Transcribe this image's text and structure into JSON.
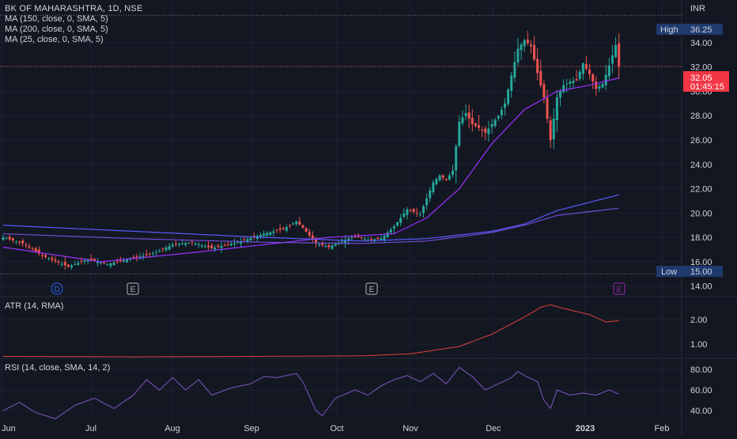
{
  "symbol_title": "BK OF MAHARASHTRA, 1D, NSE",
  "currency": "INR",
  "indicators": {
    "ma150": "MA (150, close, 0, SMA, 5)",
    "ma200": "MA (200, close, 0, SMA, 5)",
    "ma25": "MA (25, close, 0, SMA, 5)",
    "atr": "ATR (14, RMA)",
    "rsi": "RSI (14, close, SMA, 14, 2)"
  },
  "price_labels": {
    "high_label": "High",
    "high_value": "36.25",
    "low_label": "Low",
    "low_value": "15.00",
    "last_value": "32.05",
    "countdown": "01:45:15"
  },
  "event_markers": [
    "D",
    "E",
    "E",
    "E"
  ],
  "colors": {
    "background": "#131722",
    "up": "#26a69a",
    "down": "#ef5350",
    "ma25": "#9b30ff",
    "ma150": "#5b5bff",
    "ma200": "#6f4dd8",
    "atr": "#e0403c",
    "rsi": "#7e57c2",
    "grid": "#1e2230"
  },
  "chart_data": [
    {
      "type": "candlestick",
      "title": "BK OF MAHARASHTRA, 1D, NSE",
      "ylabel": "INR",
      "ylim": [
        13.2,
        37.5
      ],
      "y_ticks": [
        14,
        16,
        18,
        20,
        22,
        24,
        26,
        28,
        30,
        32,
        34
      ],
      "x_tick_labels": [
        "Jun",
        "Jul",
        "Aug",
        "Sep",
        "Oct",
        "Nov",
        "Dec",
        "2023",
        "Feb"
      ],
      "high": 36.25,
      "low": 15.0,
      "last": 32.05,
      "anchors": [
        [
          0,
          18.0
        ],
        [
          6,
          17.5
        ],
        [
          12,
          16.5
        ],
        [
          20,
          15.6
        ],
        [
          26,
          16.2
        ],
        [
          32,
          15.8
        ],
        [
          40,
          16.3
        ],
        [
          46,
          16.7
        ],
        [
          52,
          17.4
        ],
        [
          58,
          17.6
        ],
        [
          64,
          17.1
        ],
        [
          72,
          17.6
        ],
        [
          80,
          18.3
        ],
        [
          86,
          18.7
        ],
        [
          90,
          19.3
        ],
        [
          92,
          18.8
        ],
        [
          96,
          17.5
        ],
        [
          100,
          17.2
        ],
        [
          104,
          17.7
        ],
        [
          108,
          18.1
        ],
        [
          112,
          17.8
        ],
        [
          116,
          17.9
        ],
        [
          120,
          18.9
        ],
        [
          124,
          20.3
        ],
        [
          126,
          20.1
        ],
        [
          128,
          19.9
        ],
        [
          130,
          21.2
        ],
        [
          132,
          22.5
        ],
        [
          134,
          23.1
        ],
        [
          136,
          22.7
        ],
        [
          138,
          23.5
        ],
        [
          140,
          27.5
        ],
        [
          142,
          28.2
        ],
        [
          144,
          27.3
        ],
        [
          146,
          27.0
        ],
        [
          148,
          26.6
        ],
        [
          150,
          27.3
        ],
        [
          152,
          28.0
        ],
        [
          154,
          29.0
        ],
        [
          156,
          31.3
        ],
        [
          158,
          33.5
        ],
        [
          160,
          34.2
        ],
        [
          162,
          33.7
        ],
        [
          164,
          31.5
        ],
        [
          166,
          29.5
        ],
        [
          168,
          26.0
        ],
        [
          170,
          29.5
        ],
        [
          172,
          30.5
        ],
        [
          174,
          30.8
        ],
        [
          176,
          30.9
        ],
        [
          178,
          32.3
        ],
        [
          180,
          31.4
        ],
        [
          182,
          30.2
        ],
        [
          184,
          30.6
        ],
        [
          186,
          32.1
        ],
        [
          188,
          33.8
        ],
        [
          189,
          32.05
        ]
      ],
      "series": [
        {
          "name": "MA (25, close, 0, SMA, 5)",
          "points": [
            [
              0,
              17.2
            ],
            [
              30,
              16.0
            ],
            [
              60,
              16.8
            ],
            [
              100,
              18.0
            ],
            [
              120,
              18.3
            ],
            [
              130,
              19.6
            ],
            [
              140,
              22.0
            ],
            [
              150,
              25.7
            ],
            [
              160,
              28.5
            ],
            [
              170,
              30.0
            ],
            [
              180,
              30.5
            ],
            [
              189,
              31.1
            ]
          ]
        },
        {
          "name": "MA (150, close, 0, SMA, 5)",
          "points": [
            [
              0,
              19.0
            ],
            [
              40,
              18.5
            ],
            [
              80,
              18.0
            ],
            [
              110,
              17.7
            ],
            [
              130,
              17.9
            ],
            [
              150,
              18.5
            ],
            [
              160,
              19.1
            ],
            [
              170,
              20.2
            ],
            [
              189,
              21.5
            ]
          ]
        },
        {
          "name": "MA (200, close, 0, SMA, 5)",
          "points": [
            [
              0,
              18.3
            ],
            [
              40,
              17.9
            ],
            [
              80,
              17.6
            ],
            [
              110,
              17.5
            ],
            [
              130,
              17.7
            ],
            [
              150,
              18.4
            ],
            [
              160,
              19.0
            ],
            [
              170,
              19.8
            ],
            [
              189,
              20.4
            ]
          ]
        }
      ]
    },
    {
      "type": "line",
      "title": "ATR (14, RMA)",
      "ylim": [
        0.45,
        2.9
      ],
      "y_ticks": [
        1.0,
        2.0
      ],
      "series": [
        {
          "name": "ATR (14, RMA)",
          "points": [
            [
              0,
              0.5
            ],
            [
              40,
              0.48
            ],
            [
              80,
              0.5
            ],
            [
              110,
              0.52
            ],
            [
              125,
              0.6
            ],
            [
              135,
              0.8
            ],
            [
              140,
              0.9
            ],
            [
              150,
              1.4
            ],
            [
              160,
              2.1
            ],
            [
              165,
              2.5
            ],
            [
              168,
              2.6
            ],
            [
              172,
              2.45
            ],
            [
              180,
              2.2
            ],
            [
              185,
              1.9
            ],
            [
              189,
              1.95
            ]
          ]
        }
      ]
    },
    {
      "type": "line",
      "title": "RSI (14, close, SMA, 14, 2)",
      "ylim": [
        30,
        90
      ],
      "y_ticks": [
        40.0,
        60.0,
        80.0
      ],
      "series": [
        {
          "name": "RSI (14, close, SMA, 14, 2)",
          "points": [
            [
              0,
              40
            ],
            [
              5,
              48
            ],
            [
              10,
              38
            ],
            [
              16,
              32
            ],
            [
              22,
              45
            ],
            [
              28,
              52
            ],
            [
              34,
              42
            ],
            [
              40,
              55
            ],
            [
              44,
              70
            ],
            [
              48,
              60
            ],
            [
              52,
              72
            ],
            [
              56,
              60
            ],
            [
              60,
              70
            ],
            [
              64,
              55
            ],
            [
              70,
              62
            ],
            [
              76,
              66
            ],
            [
              80,
              73
            ],
            [
              84,
              72
            ],
            [
              90,
              76
            ],
            [
              92,
              68
            ],
            [
              96,
              40
            ],
            [
              98,
              35
            ],
            [
              102,
              52
            ],
            [
              108,
              60
            ],
            [
              112,
              55
            ],
            [
              116,
              64
            ],
            [
              120,
              70
            ],
            [
              124,
              74
            ],
            [
              128,
              68
            ],
            [
              132,
              76
            ],
            [
              136,
              66
            ],
            [
              140,
              82
            ],
            [
              144,
              73
            ],
            [
              148,
              60
            ],
            [
              152,
              66
            ],
            [
              156,
              72
            ],
            [
              158,
              78
            ],
            [
              160,
              74
            ],
            [
              164,
              68
            ],
            [
              166,
              50
            ],
            [
              168,
              42
            ],
            [
              170,
              60
            ],
            [
              174,
              55
            ],
            [
              178,
              57
            ],
            [
              182,
              55
            ],
            [
              186,
              60
            ],
            [
              189,
              56
            ]
          ]
        }
      ]
    }
  ]
}
